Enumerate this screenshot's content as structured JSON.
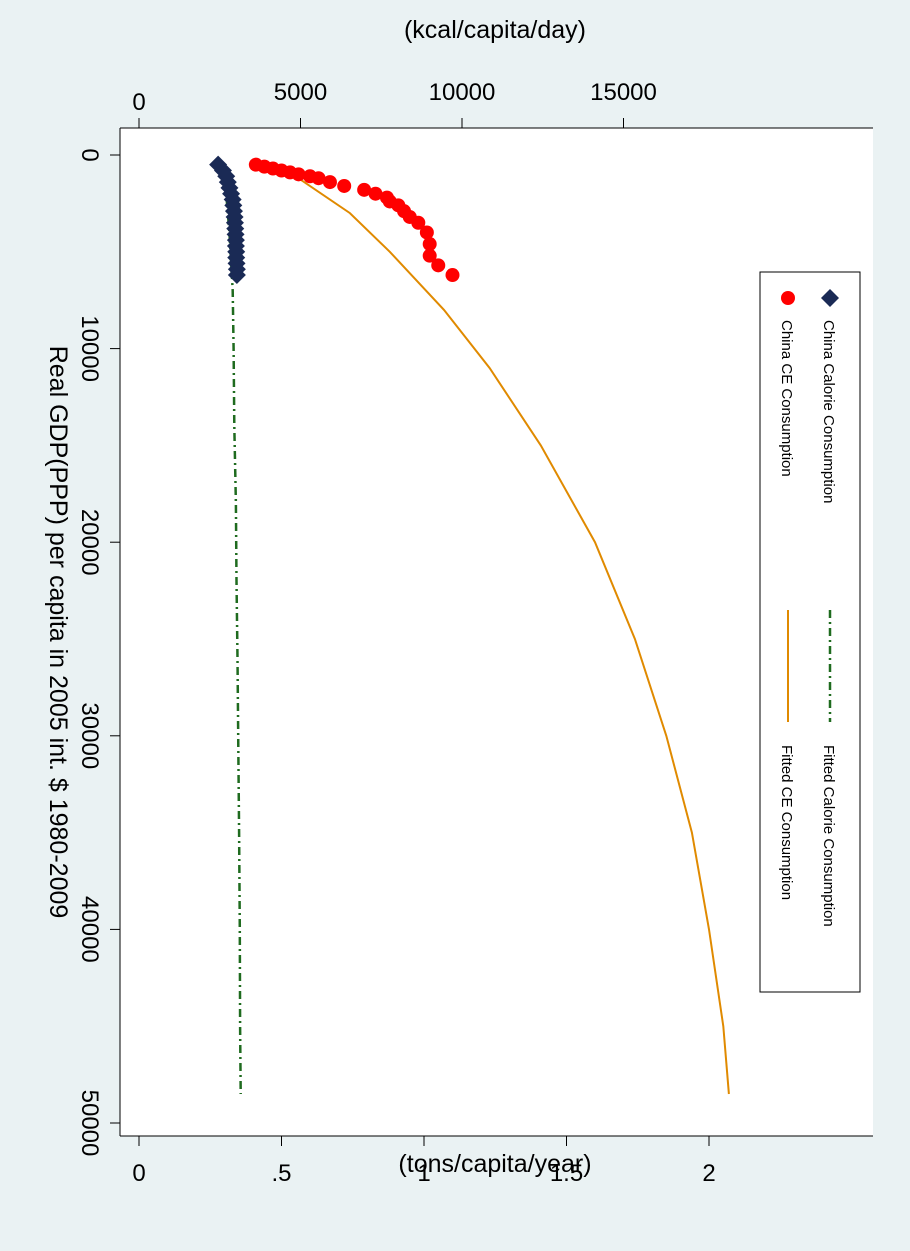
{
  "chart_data": {
    "type": "scatter",
    "orientation": "rotated 90 degrees clockwise",
    "x_axis": {
      "label": "Real GDP(PPP) per capita in 2005 int. $ 1980-2009",
      "range": [
        0,
        50000
      ],
      "ticks": [
        0,
        10000,
        20000,
        30000,
        40000,
        50000
      ],
      "tick_labels": [
        "0",
        "10000",
        "20000",
        "30000",
        "40000",
        "50000"
      ]
    },
    "y_axis_ce": {
      "label": "(tons/capita/year)",
      "range": [
        0,
        2.5
      ],
      "ticks": [
        0,
        0.5,
        1,
        1.5,
        2
      ],
      "tick_labels": [
        "0",
        ".5",
        "1",
        "1.5",
        "2"
      ]
    },
    "y_axis_calorie": {
      "label": "(kcal/capita/day)",
      "range": [
        0,
        21000
      ],
      "ticks": [
        0,
        5000,
        10000,
        15000
      ],
      "tick_labels": [
        "0",
        "5000",
        "10000",
        "15000"
      ]
    },
    "series": [
      {
        "name": "China Calorie Consumption",
        "axis": "calorie",
        "marker": "diamond",
        "color": "#1a2a55",
        "points": [
          [
            500,
            2450
          ],
          [
            800,
            2600
          ],
          [
            1100,
            2700
          ],
          [
            1400,
            2750
          ],
          [
            1700,
            2800
          ],
          [
            2000,
            2850
          ],
          [
            2300,
            2900
          ],
          [
            2600,
            2920
          ],
          [
            2900,
            2940
          ],
          [
            3200,
            2960
          ],
          [
            3500,
            2970
          ],
          [
            3800,
            2980
          ],
          [
            4100,
            2990
          ],
          [
            4400,
            3000
          ],
          [
            4700,
            3000
          ],
          [
            5000,
            3010
          ],
          [
            5300,
            3010
          ],
          [
            5600,
            3020
          ],
          [
            5900,
            3030
          ],
          [
            6200,
            3030
          ]
        ]
      },
      {
        "name": "China CE Consumption",
        "axis": "ce",
        "marker": "circle",
        "color": "#ff0000",
        "points": [
          [
            500,
            0.41
          ],
          [
            600,
            0.44
          ],
          [
            700,
            0.47
          ],
          [
            800,
            0.5
          ],
          [
            900,
            0.53
          ],
          [
            1000,
            0.56
          ],
          [
            1100,
            0.6
          ],
          [
            1200,
            0.63
          ],
          [
            1400,
            0.67
          ],
          [
            1600,
            0.72
          ],
          [
            1800,
            0.79
          ],
          [
            2000,
            0.83
          ],
          [
            2200,
            0.87
          ],
          [
            2400,
            0.88
          ],
          [
            2600,
            0.91
          ],
          [
            2900,
            0.93
          ],
          [
            3200,
            0.95
          ],
          [
            3500,
            0.98
          ],
          [
            4000,
            1.01
          ],
          [
            4600,
            1.02
          ],
          [
            5200,
            1.02
          ],
          [
            5700,
            1.05
          ],
          [
            6200,
            1.1
          ]
        ]
      },
      {
        "name": "Fitted Calorie Consumption",
        "axis": "calorie",
        "line": "dash-dot",
        "color": "#1f6b1f",
        "points": [
          [
            500,
            2450
          ],
          [
            1000,
            2600
          ],
          [
            2000,
            2700
          ],
          [
            4000,
            2800
          ],
          [
            7000,
            2900
          ],
          [
            10000,
            2930
          ],
          [
            14000,
            2950
          ],
          [
            18000,
            3000
          ],
          [
            22000,
            3020
          ],
          [
            26000,
            3050
          ],
          [
            30000,
            3070
          ],
          [
            35000,
            3100
          ],
          [
            40000,
            3120
          ],
          [
            45000,
            3130
          ],
          [
            48500,
            3150
          ]
        ]
      },
      {
        "name": "Fitted CE Consumption",
        "axis": "ce",
        "line": "solid",
        "color": "#e08a00",
        "points": [
          [
            1000,
            0.54
          ],
          [
            3000,
            0.74
          ],
          [
            5000,
            0.88
          ],
          [
            8000,
            1.07
          ],
          [
            11000,
            1.23
          ],
          [
            15000,
            1.41
          ],
          [
            20000,
            1.6
          ],
          [
            25000,
            1.74
          ],
          [
            30000,
            1.85
          ],
          [
            35000,
            1.94
          ],
          [
            40000,
            2.0
          ],
          [
            45000,
            2.05
          ],
          [
            48500,
            2.07
          ]
        ]
      }
    ],
    "legend": {
      "placement": "right",
      "entries": [
        "China Calorie Consumption",
        "China CE Consumption",
        "Fitted Calorie Consumption",
        "Fitted CE Consumption"
      ]
    },
    "colors": {
      "background": "#eaf2f3",
      "plot_background": "#ffffff"
    }
  }
}
